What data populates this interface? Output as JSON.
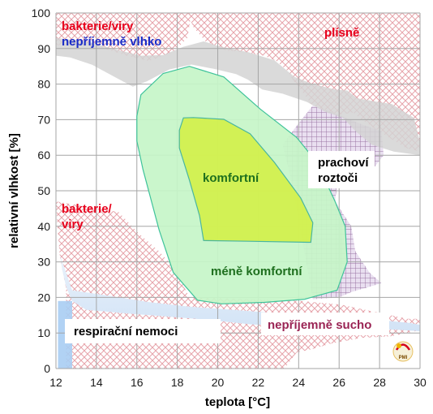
{
  "chart_data": {
    "type": "area",
    "xlabel": "teplota [°C]",
    "ylabel": "relativní vlhkost [%]",
    "xlim": [
      12,
      30
    ],
    "ylim": [
      0,
      100
    ],
    "x_ticks": [
      12,
      14,
      16,
      18,
      20,
      22,
      24,
      26,
      28,
      30
    ],
    "y_ticks": [
      0,
      10,
      20,
      30,
      40,
      50,
      60,
      70,
      80,
      90,
      100
    ],
    "grid": true,
    "annotations": {
      "bacteria_top": "bakterie/viry",
      "humid": "nepříjemně vlhko",
      "mold": "plísně",
      "dust_mites_1": "prachoví",
      "dust_mites_2": "roztoči",
      "comfortable": "komfortní",
      "bacteria_mid_1": "bakterie/",
      "bacteria_mid_2": "viry",
      "less_comfortable": "méně komfortní",
      "respiratory": "respirační nemoci",
      "dry": "nepříjemně sucho",
      "logo": "PMI"
    },
    "colors": {
      "grid": "#a6a6a6",
      "gray_band": "#d3d3d3",
      "red_hatch": "#e8a0a8",
      "mite_hatch": "#a37aa8",
      "less_comfortable_fill": "#c6f5c8",
      "less_comfortable_stroke": "#3fc39a",
      "comfortable_fill": "#d4f040",
      "comfortable_stroke": "#49b6a0",
      "blue_band": "#dceaf8",
      "blue_band_dark": "#a9cdf3",
      "red_text": "#e8001c",
      "blue_text": "#1a2cc8",
      "green_text": "#1e6f1e",
      "purple_text": "#9a2454",
      "black_text": "#000000"
    },
    "regions": [
      {
        "name": "less-comfortable",
        "polygon": [
          [
            16.0,
            71
          ],
          [
            16.2,
            77
          ],
          [
            17.3,
            83
          ],
          [
            18.6,
            85
          ],
          [
            20.3,
            82
          ],
          [
            22.1,
            73
          ],
          [
            23.9,
            65
          ],
          [
            24.9,
            58
          ],
          [
            25.8,
            47
          ],
          [
            26.3,
            40
          ],
          [
            26.4,
            30
          ],
          [
            25.9,
            22
          ],
          [
            24.3,
            19.5
          ],
          [
            22.3,
            18.6
          ],
          [
            20.2,
            18.2
          ],
          [
            19.0,
            19.2
          ],
          [
            17.8,
            27
          ],
          [
            17.1,
            39
          ],
          [
            16.3,
            56
          ],
          [
            16.0,
            64
          ]
        ]
      },
      {
        "name": "comfortable",
        "polygon": [
          [
            18.3,
            70.5
          ],
          [
            18.8,
            70.6
          ],
          [
            20.3,
            70.1
          ],
          [
            21.6,
            66
          ],
          [
            22.8,
            58
          ],
          [
            24.1,
            48
          ],
          [
            24.7,
            41
          ],
          [
            24.6,
            35.5
          ],
          [
            21.5,
            35.8
          ],
          [
            19.3,
            36
          ],
          [
            19.1,
            43
          ],
          [
            18.6,
            53
          ],
          [
            18.1,
            62
          ],
          [
            18.1,
            67
          ]
        ]
      },
      {
        "name": "mold",
        "polygon": [
          [
            18.5,
            100
          ],
          [
            30,
            100
          ],
          [
            30,
            61
          ],
          [
            29.3,
            62
          ],
          [
            28.6,
            64.5
          ],
          [
            27.9,
            67
          ],
          [
            27.1,
            70
          ],
          [
            26.7,
            72
          ],
          [
            25.9,
            71.3
          ],
          [
            25.3,
            72
          ],
          [
            24.6,
            74.5
          ],
          [
            24.3,
            77
          ],
          [
            23.8,
            80.5
          ],
          [
            23.4,
            84
          ],
          [
            22.9,
            86.5
          ],
          [
            22.3,
            88
          ],
          [
            21.3,
            89
          ],
          [
            20.4,
            89.5
          ],
          [
            19.4,
            92
          ],
          [
            18.8,
            96
          ]
        ]
      },
      {
        "name": "bacteria-top",
        "polygon": [
          [
            12,
            100
          ],
          [
            18.7,
            100
          ],
          [
            18.5,
            93
          ],
          [
            17.8,
            89
          ],
          [
            16.6,
            86.5
          ],
          [
            15.5,
            88
          ],
          [
            14.4,
            90
          ],
          [
            13.3,
            90.8
          ],
          [
            12,
            91
          ]
        ]
      },
      {
        "name": "dust-mites",
        "polygon": [
          [
            24.7,
            74
          ],
          [
            26.0,
            71.3
          ],
          [
            27.2,
            68.5
          ],
          [
            28.1,
            66.8
          ],
          [
            28.2,
            60
          ],
          [
            27.8,
            57
          ],
          [
            26.8,
            54
          ],
          [
            25.9,
            52
          ],
          [
            25.8,
            47
          ],
          [
            26.6,
            40
          ],
          [
            26.8,
            33
          ],
          [
            27.5,
            27
          ],
          [
            28.1,
            24
          ],
          [
            26.6,
            21.5
          ],
          [
            26.0,
            20
          ],
          [
            24.7,
            19.5
          ],
          [
            23.9,
            45
          ],
          [
            23.5,
            56
          ],
          [
            23.2,
            63
          ],
          [
            23.6,
            66
          ],
          [
            24.0,
            69
          ]
        ]
      },
      {
        "name": "bacteria-low",
        "polygon": [
          [
            12,
            47
          ],
          [
            15.1,
            44
          ],
          [
            16.1,
            38
          ],
          [
            17.1,
            33
          ],
          [
            17.9,
            28
          ],
          [
            18.6,
            20
          ],
          [
            24.1,
            19
          ],
          [
            26.1,
            18
          ],
          [
            27.7,
            16
          ],
          [
            29.4,
            14
          ],
          [
            30,
            14
          ],
          [
            30,
            10.8
          ],
          [
            28.6,
            9.1
          ],
          [
            27.1,
            8.6
          ],
          [
            25.6,
            7
          ],
          [
            24.7,
            5.5
          ],
          [
            23.9,
            4.5
          ],
          [
            23.3,
            0
          ],
          [
            12.5,
            0
          ],
          [
            12.5,
            22.5
          ],
          [
            12.2,
            31
          ],
          [
            12.1,
            38
          ]
        ]
      },
      {
        "name": "gray-band",
        "polygon": [
          [
            12,
            93
          ],
          [
            13.5,
            92
          ],
          [
            15.2,
            89.4
          ],
          [
            16.2,
            88
          ],
          [
            17.3,
            88.2
          ],
          [
            18.3,
            90.5
          ],
          [
            19.3,
            92
          ],
          [
            20.1,
            90.6
          ],
          [
            21.5,
            89
          ],
          [
            22.8,
            86.7
          ],
          [
            23.8,
            82
          ],
          [
            24.6,
            80.2
          ],
          [
            25.8,
            78.5
          ],
          [
            26.4,
            78.2
          ],
          [
            26.9,
            76
          ],
          [
            27.9,
            75
          ],
          [
            28.6,
            74.4
          ],
          [
            29.7,
            70.5
          ],
          [
            30,
            63.7
          ],
          [
            30,
            60
          ],
          [
            28.7,
            61
          ],
          [
            27.6,
            63
          ],
          [
            26.8,
            66.8
          ],
          [
            26.2,
            70.5
          ],
          [
            25.3,
            72.2
          ],
          [
            24.4,
            75
          ],
          [
            23.2,
            77.3
          ],
          [
            22.2,
            78.5
          ],
          [
            21.5,
            81.2
          ],
          [
            20.9,
            82.8
          ],
          [
            19.8,
            84.3
          ],
          [
            18.7,
            85.5
          ],
          [
            17.6,
            84.1
          ],
          [
            16.5,
            80.8
          ],
          [
            15.8,
            79.3
          ],
          [
            14.9,
            82
          ],
          [
            13.8,
            85.4
          ],
          [
            12.7,
            87.5
          ],
          [
            12,
            88
          ]
        ]
      },
      {
        "name": "blue-band",
        "polygon": [
          [
            12.2,
            32
          ],
          [
            12.8,
            22
          ],
          [
            14.6,
            20.5
          ],
          [
            16.6,
            18.7
          ],
          [
            18.6,
            17.4
          ],
          [
            20.8,
            16.5
          ],
          [
            23.1,
            15.5
          ],
          [
            24.8,
            15.2
          ],
          [
            26.2,
            14.1
          ],
          [
            27.6,
            13.9
          ],
          [
            29.5,
            12.8
          ],
          [
            30,
            12.3
          ],
          [
            30,
            10.5
          ],
          [
            28.9,
            10.9
          ],
          [
            27.0,
            11.3
          ],
          [
            25.3,
            11.8
          ],
          [
            23.4,
            12.1
          ],
          [
            21.7,
            12.4
          ],
          [
            19.5,
            13.7
          ],
          [
            17.6,
            14.6
          ],
          [
            15.3,
            15.6
          ],
          [
            13.5,
            16.5
          ],
          [
            12.8,
            19
          ],
          [
            12.5,
            23
          ],
          [
            12.3,
            28
          ]
        ]
      }
    ]
  }
}
